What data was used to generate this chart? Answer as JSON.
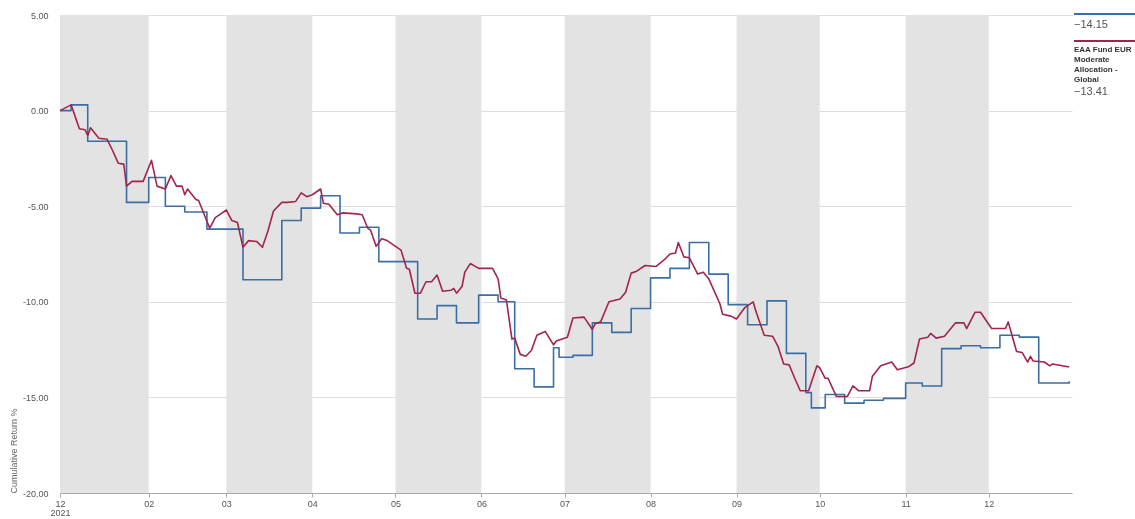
{
  "chart_data": {
    "type": "line",
    "ylabel": "Cumulative Return %",
    "xlim": [
      "2021-12-31",
      "2022-12-31"
    ],
    "ylim": [
      -20,
      5
    ],
    "yticks": [
      {
        "value": 5,
        "label": "5.00"
      },
      {
        "value": 0,
        "label": "0.00"
      },
      {
        "value": -5,
        "label": "-5.00"
      },
      {
        "value": -10,
        "label": "-10.00"
      },
      {
        "value": -15,
        "label": "-15.00"
      },
      {
        "value": -20,
        "label": "-20.00"
      }
    ],
    "xticks": [
      {
        "value": "2021-12-31",
        "label": "12\n2021"
      },
      {
        "value": "2022-02-01",
        "label": "02"
      },
      {
        "value": "2022-03-01",
        "label": "03"
      },
      {
        "value": "2022-04-01",
        "label": "04"
      },
      {
        "value": "2022-05-01",
        "label": "05"
      },
      {
        "value": "2022-06-01",
        "label": "06"
      },
      {
        "value": "2022-07-01",
        "label": "07"
      },
      {
        "value": "2022-08-01",
        "label": "08"
      },
      {
        "value": "2022-09-01",
        "label": "09"
      },
      {
        "value": "2022-10-01",
        "label": "10"
      },
      {
        "value": "2022-11-01",
        "label": "11"
      },
      {
        "value": "2022-12-01",
        "label": "12"
      }
    ],
    "grid": "y",
    "legend": "top right",
    "line_style": "solid",
    "bands": [
      {
        "axis": "x",
        "from": "2021-12-31",
        "to": "2022-02-01",
        "color": "#e3e3e3"
      },
      {
        "axis": "x",
        "from": "2022-03-01",
        "to": "2022-04-01",
        "color": "#e3e3e3"
      },
      {
        "axis": "x",
        "from": "2022-05-01",
        "to": "2022-06-01",
        "color": "#e3e3e3"
      },
      {
        "axis": "x",
        "from": "2022-07-01",
        "to": "2022-08-01",
        "color": "#e3e3e3"
      },
      {
        "axis": "x",
        "from": "2022-09-01",
        "to": "2022-10-01",
        "color": "#e3e3e3"
      },
      {
        "axis": "x",
        "from": "2022-11-01",
        "to": "2022-12-01",
        "color": "#e3e3e3"
      }
    ],
    "annotations": [
      "−14.15",
      "−13.41"
    ],
    "series": [
      {
        "type": "step",
        "color": "#3a6ea5",
        "x": [
          "2021-12-31",
          "2022-01-04",
          "2022-01-10",
          "2022-01-24",
          "2022-02-01",
          "2022-02-07",
          "2022-02-14",
          "2022-02-22",
          "2022-03-07",
          "2022-03-21",
          "2022-03-28",
          "2022-04-04",
          "2022-04-11",
          "2022-04-18",
          "2022-04-25",
          "2022-05-09",
          "2022-05-16",
          "2022-05-23",
          "2022-05-31",
          "2022-06-07",
          "2022-06-13",
          "2022-06-20",
          "2022-06-27",
          "2022-06-29",
          "2022-07-04",
          "2022-07-11",
          "2022-07-18",
          "2022-07-25",
          "2022-08-01",
          "2022-08-08",
          "2022-08-15",
          "2022-08-22",
          "2022-08-29",
          "2022-09-05",
          "2022-09-12",
          "2022-09-19",
          "2022-09-26",
          "2022-09-28",
          "2022-10-03",
          "2022-10-10",
          "2022-10-17",
          "2022-10-24",
          "2022-11-01",
          "2022-11-07",
          "2022-11-14",
          "2022-11-21",
          "2022-11-28",
          "2022-12-05",
          "2022-12-12",
          "2022-12-19",
          "2022-12-30"
        ],
        "values": [
          0,
          0.3,
          -1.6,
          -4.8,
          -3.5,
          -5.0,
          -5.3,
          -6.2,
          -8.85,
          -5.75,
          -5.1,
          -4.45,
          -6.4,
          -6.1,
          -7.9,
          -10.9,
          -10.2,
          -11.1,
          -9.65,
          -10.0,
          -13.5,
          -14.45,
          -12.4,
          -12.9,
          -12.8,
          -11.1,
          -11.6,
          -10.35,
          -8.75,
          -8.25,
          -6.9,
          -8.55,
          -10.15,
          -11.2,
          -9.95,
          -12.7,
          -14.75,
          -15.55,
          -14.85,
          -15.3,
          -15.15,
          -15.05,
          -14.25,
          -14.4,
          -12.45,
          -12.3,
          -12.4,
          -11.75,
          -11.85,
          -14.25,
          -14.15
        ]
      },
      {
        "type": "line",
        "name": "EAA Fund EUR Moderate Allocation - Global",
        "color": "#a3244a",
        "x": [
          "2021-12-31",
          "2022-01-04",
          "2022-01-07",
          "2022-01-09",
          "2022-01-10",
          "2022-01-11",
          "2022-01-14",
          "2022-01-17",
          "2022-01-19",
          "2022-01-21",
          "2022-01-23",
          "2022-01-24",
          "2022-01-26",
          "2022-01-30",
          "2022-02-02",
          "2022-02-04",
          "2022-02-07",
          "2022-02-09",
          "2022-02-11",
          "2022-02-13",
          "2022-02-14",
          "2022-02-15",
          "2022-02-18",
          "2022-02-19",
          "2022-02-23",
          "2022-02-25",
          "2022-02-27",
          "2022-03-01",
          "2022-03-03",
          "2022-03-05",
          "2022-03-07",
          "2022-03-09",
          "2022-03-12",
          "2022-03-14",
          "2022-03-16",
          "2022-03-18",
          "2022-03-21",
          "2022-03-23",
          "2022-03-26",
          "2022-03-28",
          "2022-03-30",
          "2022-04-01",
          "2022-04-04",
          "2022-04-05",
          "2022-04-07",
          "2022-04-10",
          "2022-04-12",
          "2022-04-17",
          "2022-04-19",
          "2022-04-21",
          "2022-04-22",
          "2022-04-24",
          "2022-04-26",
          "2022-04-28",
          "2022-05-01",
          "2022-05-03",
          "2022-05-05",
          "2022-05-06",
          "2022-05-08",
          "2022-05-10",
          "2022-05-12",
          "2022-05-14",
          "2022-05-16",
          "2022-05-18",
          "2022-05-21",
          "2022-05-22",
          "2022-05-23",
          "2022-05-25",
          "2022-05-26",
          "2022-05-28",
          "2022-05-31",
          "2022-06-05",
          "2022-06-07",
          "2022-06-08",
          "2022-06-10",
          "2022-06-12",
          "2022-06-13",
          "2022-06-15",
          "2022-06-17",
          "2022-06-19",
          "2022-06-21",
          "2022-06-24",
          "2022-06-27",
          "2022-06-28",
          "2022-07-02",
          "2022-07-04",
          "2022-07-08",
          "2022-07-11",
          "2022-07-12",
          "2022-07-14",
          "2022-07-17",
          "2022-07-21",
          "2022-07-23",
          "2022-07-25",
          "2022-07-27",
          "2022-07-30",
          "2022-08-03",
          "2022-08-06",
          "2022-08-08",
          "2022-08-10",
          "2022-08-11",
          "2022-08-13",
          "2022-08-15",
          "2022-08-18",
          "2022-08-20",
          "2022-08-22",
          "2022-08-26",
          "2022-08-27",
          "2022-08-30",
          "2022-09-01",
          "2022-09-04",
          "2022-09-07",
          "2022-09-08",
          "2022-09-11",
          "2022-09-14",
          "2022-09-16",
          "2022-09-18",
          "2022-09-20",
          "2022-09-22",
          "2022-09-24",
          "2022-09-27",
          "2022-09-30",
          "2022-10-01",
          "2022-10-03",
          "2022-10-04",
          "2022-10-07",
          "2022-10-11",
          "2022-10-13",
          "2022-10-15",
          "2022-10-19",
          "2022-10-20",
          "2022-10-23",
          "2022-10-27",
          "2022-10-29",
          "2022-11-02",
          "2022-11-04",
          "2022-11-06",
          "2022-11-09",
          "2022-11-10",
          "2022-11-12",
          "2022-11-15",
          "2022-11-19",
          "2022-11-22",
          "2022-11-23",
          "2022-11-26",
          "2022-11-28",
          "2022-12-02",
          "2022-12-07",
          "2022-12-08",
          "2022-12-11",
          "2022-12-13",
          "2022-12-15",
          "2022-12-16",
          "2022-12-17",
          "2022-12-21",
          "2022-12-23",
          "2022-12-24",
          "2022-12-30"
        ],
        "values": [
          0,
          0.3,
          -0.95,
          -1.0,
          -1.3,
          -0.9,
          -1.45,
          -1.5,
          -2.1,
          -2.75,
          -2.8,
          -3.95,
          -3.7,
          -3.7,
          -2.6,
          -3.95,
          -4.1,
          -3.4,
          -3.95,
          -3.95,
          -4.4,
          -4.1,
          -4.65,
          -4.7,
          -6.15,
          -5.6,
          -5.4,
          -5.2,
          -5.75,
          -5.85,
          -7.15,
          -6.8,
          -6.85,
          -7.15,
          -6.3,
          -5.25,
          -4.8,
          -4.8,
          -4.75,
          -4.3,
          -4.5,
          -4.4,
          -4.1,
          -4.85,
          -4.9,
          -5.45,
          -5.35,
          -5.4,
          -5.45,
          -6.15,
          -6.25,
          -7.1,
          -6.7,
          -6.8,
          -7.1,
          -7.3,
          -8.25,
          -8.3,
          -9.55,
          -9.55,
          -8.95,
          -8.95,
          -8.6,
          -9.45,
          -9.4,
          -9.3,
          -9.55,
          -9.2,
          -8.45,
          -8.0,
          -8.25,
          -8.25,
          -8.8,
          -9.8,
          -9.9,
          -11.95,
          -11.9,
          -12.75,
          -12.85,
          -12.55,
          -11.75,
          -11.55,
          -12.25,
          -12.05,
          -11.85,
          -10.85,
          -10.8,
          -11.45,
          -11.15,
          -11.05,
          -10.0,
          -9.85,
          -9.5,
          -8.5,
          -8.4,
          -8.1,
          -8.15,
          -7.8,
          -7.5,
          -7.45,
          -6.9,
          -7.65,
          -7.7,
          -8.55,
          -8.45,
          -8.8,
          -10.1,
          -10.65,
          -10.75,
          -10.9,
          -10.3,
          -10.0,
          -10.5,
          -11.75,
          -11.8,
          -12.35,
          -13.25,
          -13.3,
          -14.0,
          -14.65,
          -14.65,
          -13.35,
          -13.45,
          -14.0,
          -14.0,
          -14.95,
          -14.95,
          -14.4,
          -14.65,
          -14.65,
          -13.9,
          -13.35,
          -13.15,
          -13.55,
          -13.4,
          -13.2,
          -11.95,
          -11.85,
          -11.65,
          -11.9,
          -11.8,
          -11.1,
          -11.1,
          -11.4,
          -10.55,
          -10.55,
          -11.4,
          -11.4,
          -11.05,
          -12.6,
          -12.65,
          -13.15,
          -12.85,
          -13.1,
          -13.15,
          -13.35,
          -13.25,
          -13.41
        ]
      }
    ]
  }
}
